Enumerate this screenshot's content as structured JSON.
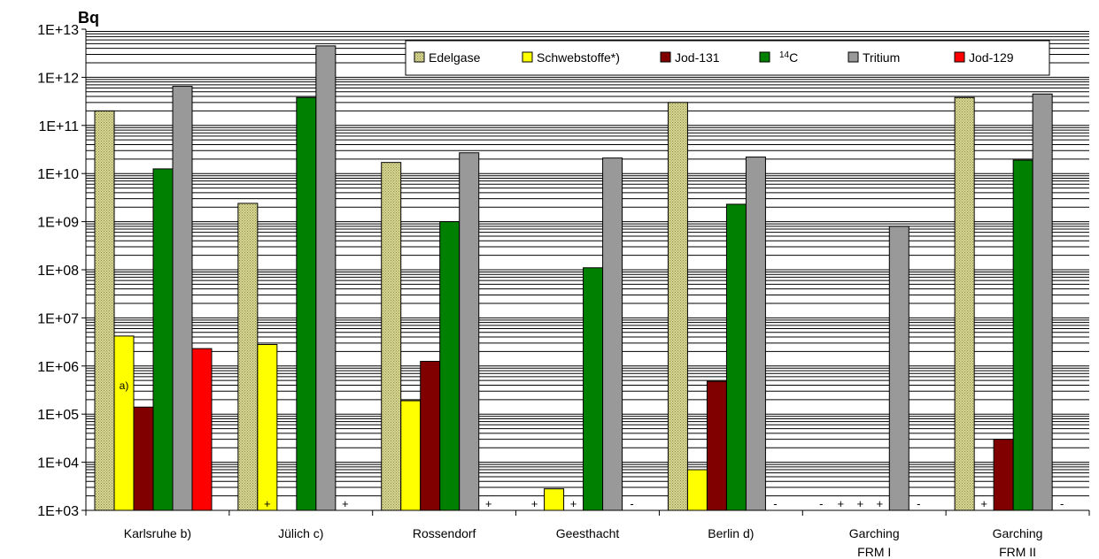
{
  "chart_data": {
    "type": "bar",
    "unit_label": "Bq",
    "y_scale": "log",
    "ylim": [
      1000,
      10000000000000
    ],
    "y_tick_labels": [
      "1E+03",
      "1E+04",
      "1E+05",
      "1E+06",
      "1E+07",
      "1E+08",
      "1E+09",
      "1E+10",
      "1E+11",
      "1E+12",
      "1E+13"
    ],
    "grid": true,
    "legend_position": "top-right",
    "categories": [
      {
        "line1": "Karlsruhe b)",
        "line2": ""
      },
      {
        "line1": "Jülich c)",
        "line2": ""
      },
      {
        "line1": "Rossendorf",
        "line2": ""
      },
      {
        "line1": "Geesthacht",
        "line2": ""
      },
      {
        "line1": "Berlin d)",
        "line2": ""
      },
      {
        "line1": "Garching",
        "line2": "FRM I"
      },
      {
        "line1": "Garching",
        "line2": "FRM II"
      }
    ],
    "series": [
      {
        "name": "Edelgase",
        "color": "#d8d890",
        "pattern": "dotted",
        "values": [
          200000000000,
          2400000000,
          17000000000,
          null,
          300000000000,
          null,
          380000000000
        ]
      },
      {
        "name": "Schwebstoffe*)",
        "color": "#ffff00",
        "values": [
          4200000,
          2800000,
          190000,
          2800,
          7000,
          null,
          null
        ]
      },
      {
        "name": "Jod-131",
        "color": "#800000",
        "values": [
          140000,
          null,
          1250000,
          null,
          480000,
          null,
          30000
        ]
      },
      {
        "name": "14C",
        "name_sup": "14",
        "name_base": "C",
        "color": "#008000",
        "values": [
          12500000000,
          380000000000,
          1000000000,
          110000000,
          2300000000,
          null,
          19000000000
        ]
      },
      {
        "name": "Tritium",
        "color": "#999999",
        "values": [
          650000000000,
          4500000000000,
          27000000000,
          21000000000,
          22000000000,
          800000000,
          450000000000
        ]
      },
      {
        "name": "Jod-129",
        "color": "#ff0000",
        "values": [
          2300000,
          null,
          null,
          null,
          null,
          null,
          null
        ]
      }
    ],
    "markers": [
      {
        "category": 1,
        "series": 1,
        "text": "+"
      },
      {
        "category": 1,
        "series": 5,
        "text": "+"
      },
      {
        "category": 2,
        "series": 5,
        "text": "+"
      },
      {
        "category": 3,
        "series": 0,
        "text": "+"
      },
      {
        "category": 3,
        "series": 2,
        "text": "+"
      },
      {
        "category": 3,
        "series": 5,
        "text": "-"
      },
      {
        "category": 4,
        "series": 5,
        "text": "-"
      },
      {
        "category": 5,
        "series": 0,
        "text": "-"
      },
      {
        "category": 5,
        "series": 1,
        "text": "+"
      },
      {
        "category": 5,
        "series": 2,
        "text": "+"
      },
      {
        "category": 5,
        "series": 3,
        "text": "+"
      },
      {
        "category": 5,
        "series": 5,
        "text": "-"
      },
      {
        "category": 6,
        "series": 1,
        "text": "+"
      },
      {
        "category": 6,
        "series": 5,
        "text": "-"
      }
    ],
    "annotations": [
      {
        "category": 0,
        "series": 1,
        "text": "a)"
      }
    ]
  }
}
